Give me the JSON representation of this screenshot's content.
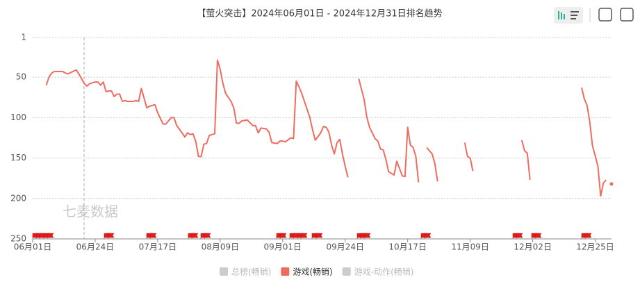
{
  "chart_data": {
    "type": "line",
    "title": "【萤火突击】2024年06月01日 - 2024年12月31日排名趋势",
    "watermark": "七麦数据",
    "y_inverted": true,
    "ylim": [
      1,
      250
    ],
    "yticks": [
      1,
      50,
      100,
      150,
      200,
      250
    ],
    "grid": true,
    "xlim": [
      0,
      213
    ],
    "xticks": [
      {
        "value": 0,
        "label": "06月01日"
      },
      {
        "value": 23,
        "label": "06月24日"
      },
      {
        "value": 46,
        "label": "07月17日"
      },
      {
        "value": 69,
        "label": "08月09日"
      },
      {
        "value": 92,
        "label": "09月01日"
      },
      {
        "value": 115,
        "label": "09月24日"
      },
      {
        "value": 138,
        "label": "10月17日"
      },
      {
        "value": 161,
        "label": "11月09日"
      },
      {
        "value": 184,
        "label": "12月02日"
      },
      {
        "value": 207,
        "label": "12月25日"
      }
    ],
    "x": [
      5,
      6,
      7,
      8,
      11,
      12,
      13,
      16,
      17,
      18,
      19,
      20,
      21,
      23,
      24,
      25,
      26,
      27,
      28,
      29,
      30,
      31,
      32,
      33,
      34,
      35,
      37,
      38,
      39,
      40,
      42,
      43,
      45,
      46,
      48,
      49,
      50,
      51,
      52,
      53,
      55,
      56,
      57,
      58,
      59,
      60,
      61,
      62,
      63,
      64,
      65,
      66,
      67,
      68,
      69,
      70,
      71,
      73,
      74,
      75,
      76,
      77,
      79,
      81,
      82,
      83,
      84,
      86,
      87,
      88,
      90,
      91,
      92,
      93,
      95,
      96,
      97,
      98,
      99,
      101,
      102,
      103,
      104,
      106,
      107,
      108,
      109,
      110,
      111,
      112,
      113,
      114,
      115,
      116,
      117,
      120,
      122,
      123,
      124,
      126,
      127,
      128,
      129,
      130,
      131,
      133,
      134,
      135,
      136,
      137,
      138,
      139,
      140,
      141,
      142,
      143,
      145,
      146,
      147,
      148,
      149,
      150,
      159,
      160,
      161,
      162,
      163,
      180,
      181,
      182,
      183,
      184,
      202,
      203,
      204,
      205,
      206,
      207,
      208,
      209,
      210,
      211,
      212,
      213
    ],
    "series": [
      {
        "name": "总榜(畅销)",
        "color": "#cccccc",
        "visible": false
      },
      {
        "name": "游戏(畅销)",
        "color": "#ef6b5f",
        "visible": true,
        "values": [
          60,
          50,
          45,
          43,
          43,
          45,
          46,
          41,
          46,
          52,
          58,
          61,
          58,
          56,
          56,
          60,
          56,
          68,
          67,
          67,
          74,
          71,
          71,
          80,
          79,
          80,
          80,
          79,
          80,
          64,
          88,
          86,
          84,
          94,
          108,
          108,
          104,
          100,
          100,
          110,
          119,
          124,
          119,
          121,
          120,
          129,
          148,
          148,
          133,
          132,
          122,
          121,
          120,
          29,
          40,
          58,
          70,
          80,
          88,
          107,
          107,
          104,
          103,
          110,
          110,
          119,
          113,
          114,
          118,
          131,
          132,
          129,
          129,
          130,
          125,
          126,
          55,
          62,
          70,
          90,
          100,
          115,
          128,
          119,
          111,
          112,
          118,
          134,
          145,
          131,
          127,
          145,
          160,
          174,
          null,
          52,
          78,
          100,
          112,
          126,
          129,
          139,
          140,
          152,
          167,
          171,
          154,
          163,
          172,
          173,
          112,
          134,
          137,
          148,
          180,
          null,
          137,
          141,
          145,
          157,
          179,
          null,
          131,
          148,
          150,
          166,
          null,
          128,
          141,
          144,
          177,
          null,
          63,
          77,
          85,
          105,
          135,
          147,
          160,
          197,
          181,
          177,
          null,
          182
        ]
      },
      {
        "name": "游戏-动作(畅销)",
        "color": "#cccccc",
        "visible": false
      }
    ]
  }
}
